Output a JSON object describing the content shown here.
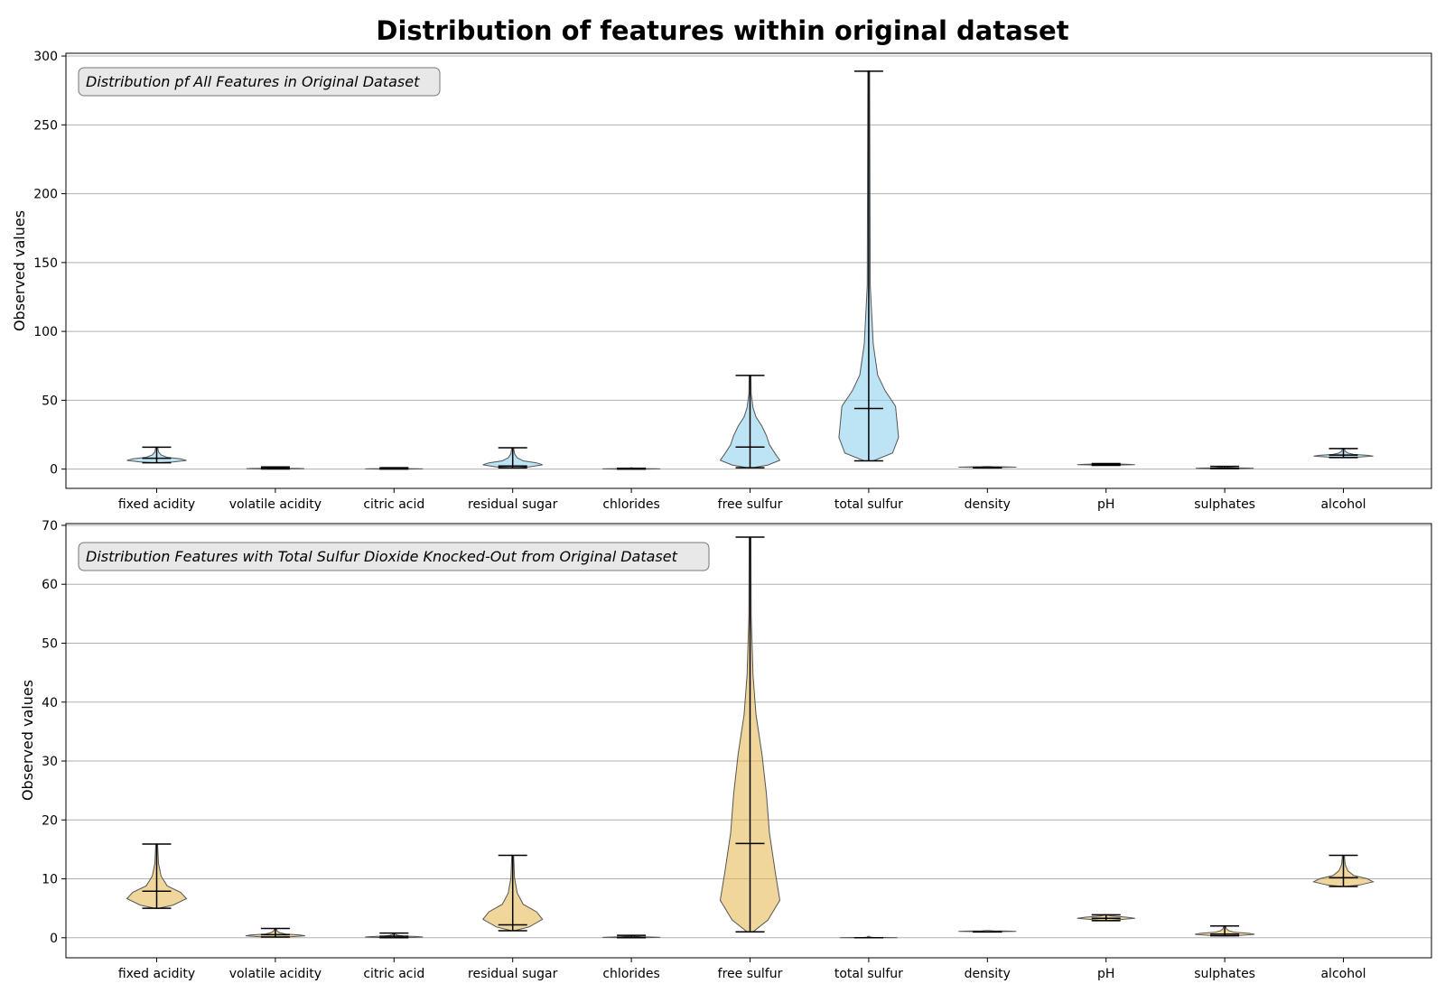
{
  "figure_title": "Distribution of features within original dataset",
  "colors": {
    "panel1_fill": "#87ceeb",
    "panel2_fill": "#e3b448",
    "edge": "#555555",
    "whisker": "#000000",
    "grid": "#b0b0b0",
    "annotation_bg": "#e8e8e8"
  },
  "chart_data": [
    {
      "type": "violin",
      "annotation": "Distribution pf All Features in Original Dataset",
      "ylabel": "Observed values",
      "ylim": [
        -14,
        302
      ],
      "yticks": [
        0,
        50,
        100,
        150,
        200,
        250,
        300
      ],
      "grid": true,
      "categories": [
        "fixed acidity",
        "volatile acidity",
        "citric acid",
        "residual sugar",
        "chlorides",
        "free sulfur",
        "total sulfur",
        "density",
        "pH",
        "sulphates",
        "alcohol"
      ],
      "series": [
        {
          "values": [
            {
              "min": 4.6,
              "max": 15.9,
              "median": 7.9
            },
            {
              "min": 0.12,
              "max": 1.58,
              "median": 0.52
            },
            {
              "min": 0,
              "max": 1,
              "median": 0.26
            },
            {
              "min": 0.9,
              "max": 15.5,
              "median": 2.2
            },
            {
              "min": 0.01,
              "max": 0.61,
              "median": 0.08
            },
            {
              "min": 1,
              "max": 68,
              "median": 16
            },
            {
              "min": 6,
              "max": 289,
              "median": 44
            },
            {
              "min": 0.99,
              "max": 1.0,
              "median": 0.997
            },
            {
              "min": 2.74,
              "max": 4.01,
              "median": 3.31
            },
            {
              "min": 0.33,
              "max": 2.0,
              "median": 0.62
            },
            {
              "min": 8.4,
              "max": 14.9,
              "median": 10.2
            }
          ]
        }
      ]
    },
    {
      "type": "violin",
      "annotation": "Distribution Features with Total Sulfur Dioxide Knocked-Out from Original Dataset",
      "ylabel": "Observed values",
      "ylim": [
        -3.4,
        70.3
      ],
      "yticks": [
        0,
        10,
        20,
        30,
        40,
        50,
        60,
        70
      ],
      "grid": true,
      "categories": [
        "fixed acidity",
        "volatile acidity",
        "citric acid",
        "residual sugar",
        "chlorides",
        "free sulfur",
        "total sulfur",
        "density",
        "pH",
        "sulphates",
        "alcohol"
      ],
      "series": [
        {
          "values": [
            {
              "min": 5,
              "max": 15.9,
              "median": 7.9
            },
            {
              "min": 0.12,
              "max": 1.58,
              "median": 0.52
            },
            {
              "min": 0,
              "max": 0.8,
              "median": 0.26
            },
            {
              "min": 1.2,
              "max": 14,
              "median": 2.2
            },
            {
              "min": 0.01,
              "max": 0.41,
              "median": 0.08
            },
            {
              "min": 1,
              "max": 68,
              "median": 16
            },
            {
              "min": 0,
              "max": 0,
              "median": 0
            },
            {
              "min": 0.99,
              "max": 1.0,
              "median": 0.997
            },
            {
              "min": 2.9,
              "max": 3.9,
              "median": 3.31
            },
            {
              "min": 0.33,
              "max": 2.0,
              "median": 0.62
            },
            {
              "min": 8.7,
              "max": 14,
              "median": 10.2
            }
          ]
        }
      ]
    }
  ]
}
